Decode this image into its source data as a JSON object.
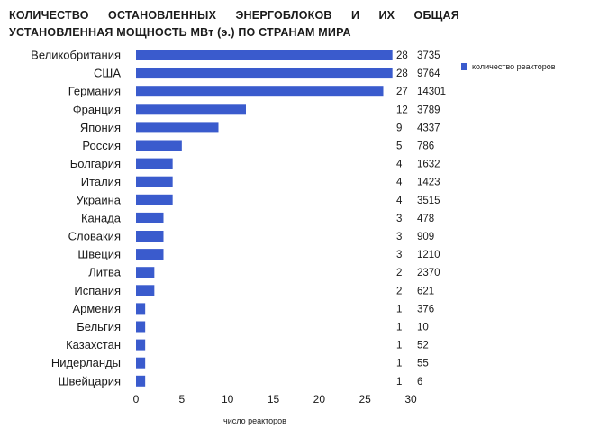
{
  "chart_data": {
    "type": "bar",
    "orientation": "horizontal",
    "title_line1": [
      "КОЛИЧЕСТВО",
      "ОСТАНОВЛЕННЫХ",
      "ЭНЕРГОБЛОКОВ",
      "И",
      "ИХ",
      "ОБЩАЯ"
    ],
    "title_line2": "УСТАНОВЛЕННАЯ МОЩНОСТЬ МВт (э.) ПО СТРАНАМ МИРА",
    "xlabel": "число реакторов",
    "legend": "количество реакторов",
    "bar_color": "#3a5bcd",
    "xlim": [
      0,
      30
    ],
    "xticks": [
      0,
      5,
      10,
      15,
      20,
      25,
      30
    ],
    "grid": false,
    "legend_position": "right",
    "categories": [
      "Великобритания",
      "США",
      "Германия",
      "Франция",
      "Япония",
      "Россия",
      "Болгария",
      "Италия",
      "Украина",
      "Канада",
      "Словакия",
      "Швеция",
      "Литва",
      "Испания",
      "Армения",
      "Бельгия",
      "Казахстан",
      "Нидерланды",
      "Швейцария"
    ],
    "values": [
      28,
      28,
      27,
      12,
      9,
      5,
      4,
      4,
      4,
      3,
      3,
      3,
      2,
      2,
      1,
      1,
      1,
      1,
      1
    ],
    "capacity_mwe": [
      3735,
      9764,
      14301,
      3789,
      4337,
      786,
      1632,
      1423,
      3515,
      478,
      909,
      1210,
      2370,
      621,
      376,
      10,
      52,
      55,
      6
    ]
  }
}
